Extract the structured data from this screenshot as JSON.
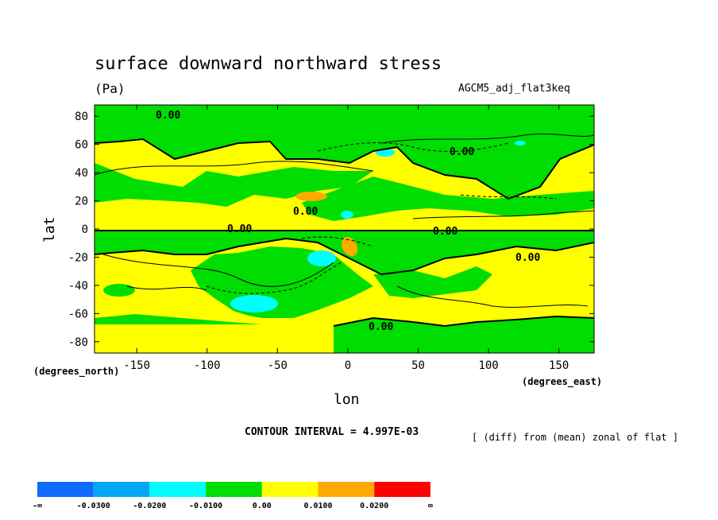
{
  "header": {
    "title": "surface downward northward stress",
    "units": "(Pa)",
    "dataset": "AGCM5_adj_flat3keq"
  },
  "axes": {
    "ylabel": "lat",
    "xlabel": "lon",
    "y_units": "(degrees_north)",
    "x_units": "(degrees_east)"
  },
  "footer": {
    "contour_interval": "CONTOUR INTERVAL = 4.997E-03",
    "note": "[ (diff) from (mean) zonal of flat ]"
  },
  "chart_data": {
    "type": "heatmap",
    "title": "surface downward northward stress",
    "xlabel": "lon",
    "ylabel": "lat",
    "xlim": [
      -180,
      175
    ],
    "ylim": [
      -88,
      88
    ],
    "x_ticks": [
      -150,
      -100,
      -50,
      0,
      50,
      100,
      150
    ],
    "y_ticks": [
      80,
      60,
      40,
      20,
      0,
      -20,
      -40,
      -60,
      -80
    ],
    "contour_labels": [
      "0.00"
    ],
    "colorbar": {
      "labels": [
        "-∞",
        "-0.0300",
        "-0.0200",
        "-0.0100",
        "0.00",
        "0.0100",
        "0.0200",
        "∞"
      ],
      "colors": [
        "#0f6aff",
        "#04a7f5",
        "#00ffff",
        "#00dd00",
        "#ffff00",
        "#ffaa00",
        "#ff0000"
      ]
    }
  }
}
